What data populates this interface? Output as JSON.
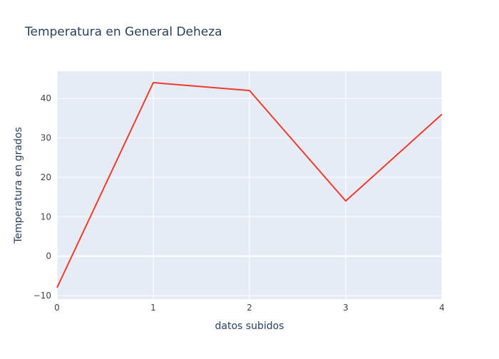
{
  "chart_data": {
    "type": "line",
    "title": "Temperatura en General Deheza",
    "xlabel": "datos subidos",
    "ylabel": "Temperatura en grados",
    "x": [
      0,
      1,
      2,
      3,
      4
    ],
    "series": [
      {
        "values": [
          -8,
          44,
          42,
          14,
          36
        ]
      }
    ],
    "xlim": [
      0,
      4
    ],
    "ylim": [
      -10.9,
      46.9
    ],
    "xticks": [
      0,
      1,
      2,
      3,
      4
    ],
    "yticks": [
      -10,
      0,
      10,
      20,
      30,
      40
    ],
    "ytick_labels": [
      "−10",
      "0",
      "10",
      "20",
      "30",
      "40"
    ],
    "grid": true,
    "colors": {
      "line": "#EF3B2C",
      "plot_bg": "#E5ECF6",
      "grid": "#ffffff",
      "text": "#2A3F5F",
      "tick_text": "#444444"
    }
  }
}
